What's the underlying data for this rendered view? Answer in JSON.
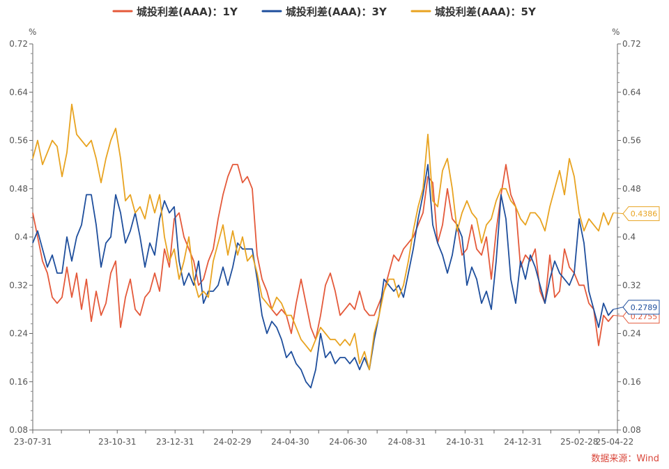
{
  "chart_data": {
    "type": "line",
    "unit_left": "%",
    "unit_right": "%",
    "ylim": [
      0.08,
      0.72
    ],
    "y_ticks": [
      "0.08",
      "0.16",
      "0.24",
      "0.32",
      "0.4",
      "0.48",
      "0.56",
      "0.64",
      "0.72"
    ],
    "x_ticks": [
      "23-07-31",
      "23-10-31",
      "23-12-31",
      "24-02-29",
      "24-04-30",
      "24-06-30",
      "24-08-31",
      "24-10-31",
      "24-12-31",
      "25-02-28",
      "25-04-22"
    ],
    "legend_position": "top",
    "source": "数据来源：Wind",
    "series": [
      {
        "name": "城投利差(AAA)：1Y",
        "color": "#e4593a",
        "end_label": "0.2755",
        "values": [
          0.44,
          0.4,
          0.36,
          0.34,
          0.3,
          0.29,
          0.3,
          0.35,
          0.3,
          0.34,
          0.28,
          0.33,
          0.26,
          0.31,
          0.27,
          0.29,
          0.34,
          0.36,
          0.25,
          0.3,
          0.33,
          0.28,
          0.27,
          0.3,
          0.31,
          0.34,
          0.31,
          0.38,
          0.35,
          0.43,
          0.44,
          0.4,
          0.38,
          0.36,
          0.32,
          0.33,
          0.36,
          0.38,
          0.43,
          0.47,
          0.5,
          0.52,
          0.52,
          0.49,
          0.5,
          0.48,
          0.37,
          0.33,
          0.31,
          0.28,
          0.27,
          0.28,
          0.27,
          0.24,
          0.29,
          0.33,
          0.29,
          0.25,
          0.23,
          0.27,
          0.32,
          0.34,
          0.31,
          0.27,
          0.28,
          0.29,
          0.28,
          0.31,
          0.28,
          0.27,
          0.27,
          0.29,
          0.31,
          0.34,
          0.37,
          0.36,
          0.38,
          0.39,
          0.4,
          0.42,
          0.44,
          0.5,
          0.49,
          0.39,
          0.42,
          0.48,
          0.43,
          0.42,
          0.37,
          0.38,
          0.42,
          0.38,
          0.37,
          0.4,
          0.33,
          0.41,
          0.47,
          0.52,
          0.47,
          0.45,
          0.35,
          0.37,
          0.36,
          0.38,
          0.31,
          0.29,
          0.37,
          0.3,
          0.31,
          0.38,
          0.35,
          0.34,
          0.32,
          0.32,
          0.29,
          0.28,
          0.22,
          0.27,
          0.26,
          0.27
        ]
      },
      {
        "name": "城投利差(AAA)：3Y",
        "color": "#1e4e9c",
        "end_label": "0.2789",
        "values": [
          0.39,
          0.41,
          0.38,
          0.35,
          0.37,
          0.34,
          0.34,
          0.4,
          0.36,
          0.4,
          0.42,
          0.47,
          0.47,
          0.42,
          0.35,
          0.39,
          0.4,
          0.47,
          0.44,
          0.39,
          0.41,
          0.44,
          0.4,
          0.35,
          0.39,
          0.37,
          0.43,
          0.46,
          0.44,
          0.45,
          0.36,
          0.32,
          0.34,
          0.32,
          0.36,
          0.29,
          0.31,
          0.31,
          0.32,
          0.35,
          0.32,
          0.35,
          0.39,
          0.38,
          0.38,
          0.38,
          0.33,
          0.27,
          0.24,
          0.26,
          0.25,
          0.23,
          0.2,
          0.21,
          0.19,
          0.18,
          0.16,
          0.15,
          0.18,
          0.24,
          0.2,
          0.21,
          0.19,
          0.2,
          0.2,
          0.19,
          0.2,
          0.18,
          0.2,
          0.18,
          0.23,
          0.27,
          0.33,
          0.32,
          0.31,
          0.32,
          0.3,
          0.34,
          0.38,
          0.43,
          0.47,
          0.52,
          0.42,
          0.39,
          0.37,
          0.34,
          0.37,
          0.42,
          0.4,
          0.32,
          0.35,
          0.33,
          0.29,
          0.31,
          0.28,
          0.36,
          0.47,
          0.43,
          0.33,
          0.29,
          0.36,
          0.33,
          0.37,
          0.35,
          0.32,
          0.29,
          0.33,
          0.36,
          0.34,
          0.33,
          0.32,
          0.34,
          0.43,
          0.39,
          0.31,
          0.28,
          0.25,
          0.29,
          0.27,
          0.28
        ]
      },
      {
        "name": "城投利差(AAA)：5Y",
        "color": "#e8a320",
        "end_label": "0.4386",
        "values": [
          0.53,
          0.56,
          0.52,
          0.54,
          0.56,
          0.55,
          0.5,
          0.54,
          0.62,
          0.57,
          0.56,
          0.55,
          0.56,
          0.53,
          0.49,
          0.53,
          0.56,
          0.58,
          0.53,
          0.46,
          0.47,
          0.44,
          0.45,
          0.43,
          0.47,
          0.44,
          0.47,
          0.4,
          0.36,
          0.38,
          0.33,
          0.36,
          0.4,
          0.33,
          0.3,
          0.31,
          0.3,
          0.36,
          0.39,
          0.42,
          0.37,
          0.41,
          0.37,
          0.4,
          0.36,
          0.37,
          0.34,
          0.3,
          0.29,
          0.28,
          0.3,
          0.29,
          0.27,
          0.27,
          0.25,
          0.23,
          0.22,
          0.21,
          0.23,
          0.25,
          0.24,
          0.23,
          0.23,
          0.22,
          0.23,
          0.22,
          0.24,
          0.19,
          0.21,
          0.18,
          0.24,
          0.27,
          0.31,
          0.33,
          0.33,
          0.3,
          0.32,
          0.36,
          0.41,
          0.45,
          0.48,
          0.57,
          0.46,
          0.45,
          0.51,
          0.53,
          0.48,
          0.41,
          0.44,
          0.46,
          0.44,
          0.43,
          0.39,
          0.42,
          0.43,
          0.46,
          0.48,
          0.48,
          0.46,
          0.45,
          0.43,
          0.42,
          0.44,
          0.44,
          0.43,
          0.41,
          0.45,
          0.48,
          0.51,
          0.47,
          0.53,
          0.5,
          0.44,
          0.41,
          0.43,
          0.42,
          0.41,
          0.44,
          0.42,
          0.44
        ]
      }
    ]
  }
}
